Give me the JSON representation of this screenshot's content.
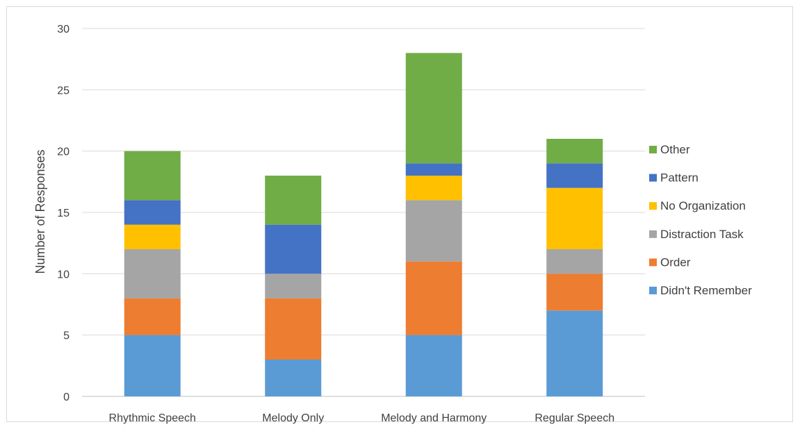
{
  "chart_data": {
    "type": "bar",
    "stacked": true,
    "title": "",
    "xlabel": "",
    "ylabel": "Number of Responses",
    "ylim": [
      0,
      30
    ],
    "yticks": [
      0,
      5,
      10,
      15,
      20,
      25,
      30
    ],
    "grid": true,
    "legend_position": "right",
    "categories": [
      "Rhythmic Speech",
      "Melody Only",
      "Melody and Harmony",
      "Regular Speech"
    ],
    "series": [
      {
        "name": "Didn't Remember",
        "color": "#5b9bd5",
        "values": [
          5,
          3,
          5,
          7
        ]
      },
      {
        "name": "Order",
        "color": "#ed7d31",
        "values": [
          3,
          5,
          6,
          3
        ]
      },
      {
        "name": "Distraction Task",
        "color": "#a5a5a5",
        "values": [
          4,
          2,
          5,
          2
        ]
      },
      {
        "name": "No Organization",
        "color": "#ffc000",
        "values": [
          2,
          0,
          2,
          5
        ]
      },
      {
        "name": "Pattern",
        "color": "#4472c4",
        "values": [
          2,
          4,
          1,
          2
        ]
      },
      {
        "name": "Other",
        "color": "#70ad47",
        "values": [
          4,
          4,
          9,
          2
        ]
      }
    ]
  }
}
